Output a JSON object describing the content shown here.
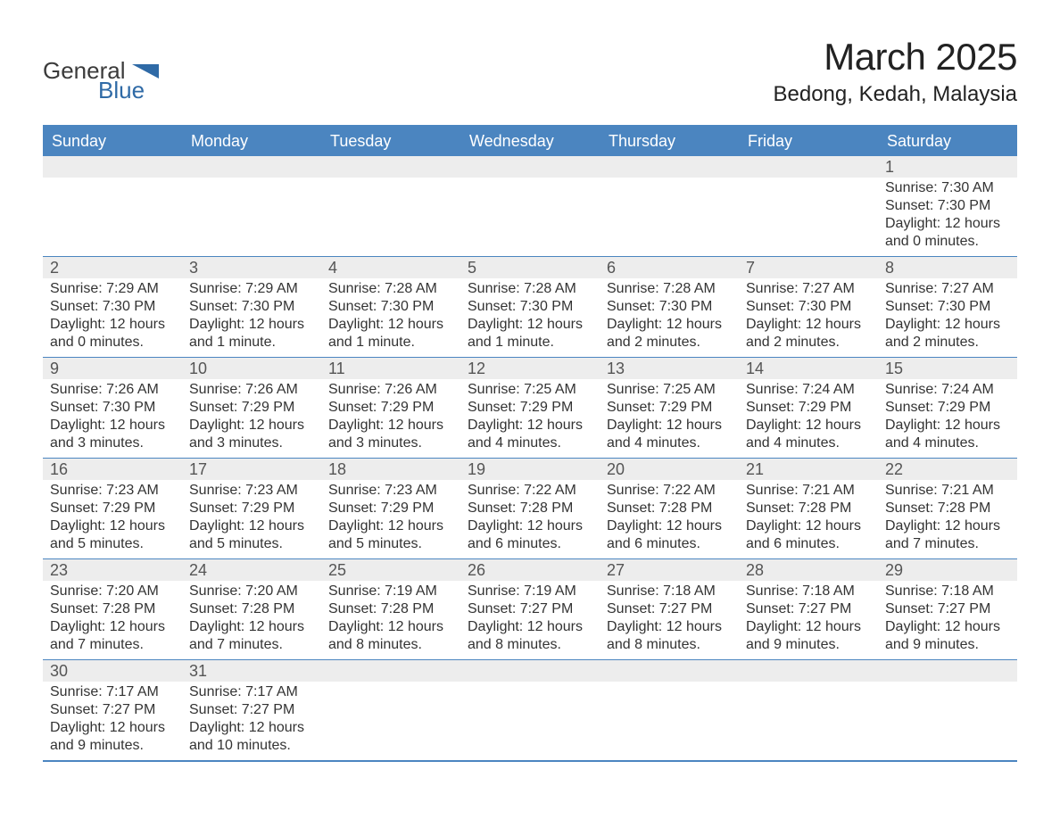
{
  "brand": {
    "name": "GeneralBlue",
    "text_primary": "General",
    "text_secondary": "Blue",
    "color_dark": "#3b3b3b",
    "color_accent": "#2f6aa6"
  },
  "title": {
    "month_year": "March 2025",
    "location": "Bedong, Kedah, Malaysia",
    "title_fontsize_pt": 32,
    "location_fontsize_pt": 18,
    "text_color": "#222222"
  },
  "colors": {
    "header_bg": "#4b85c0",
    "header_text": "#ffffff",
    "daynum_bg": "#ededed",
    "daynum_text": "#555555",
    "body_text": "#333333",
    "row_divider": "#4b85c0",
    "page_bg": "#ffffff"
  },
  "weekdays": [
    "Sunday",
    "Monday",
    "Tuesday",
    "Wednesday",
    "Thursday",
    "Friday",
    "Saturday"
  ],
  "layout": {
    "columns": 7,
    "rows": 6,
    "cell_fontsize_pt": 12,
    "weekday_fontsize_pt": 14
  },
  "weeks": [
    [
      null,
      null,
      null,
      null,
      null,
      null,
      {
        "n": "1",
        "sunrise": "Sunrise: 7:30 AM",
        "sunset": "Sunset: 7:30 PM",
        "dl1": "Daylight: 12 hours",
        "dl2": "and 0 minutes."
      }
    ],
    [
      {
        "n": "2",
        "sunrise": "Sunrise: 7:29 AM",
        "sunset": "Sunset: 7:30 PM",
        "dl1": "Daylight: 12 hours",
        "dl2": "and 0 minutes."
      },
      {
        "n": "3",
        "sunrise": "Sunrise: 7:29 AM",
        "sunset": "Sunset: 7:30 PM",
        "dl1": "Daylight: 12 hours",
        "dl2": "and 1 minute."
      },
      {
        "n": "4",
        "sunrise": "Sunrise: 7:28 AM",
        "sunset": "Sunset: 7:30 PM",
        "dl1": "Daylight: 12 hours",
        "dl2": "and 1 minute."
      },
      {
        "n": "5",
        "sunrise": "Sunrise: 7:28 AM",
        "sunset": "Sunset: 7:30 PM",
        "dl1": "Daylight: 12 hours",
        "dl2": "and 1 minute."
      },
      {
        "n": "6",
        "sunrise": "Sunrise: 7:28 AM",
        "sunset": "Sunset: 7:30 PM",
        "dl1": "Daylight: 12 hours",
        "dl2": "and 2 minutes."
      },
      {
        "n": "7",
        "sunrise": "Sunrise: 7:27 AM",
        "sunset": "Sunset: 7:30 PM",
        "dl1": "Daylight: 12 hours",
        "dl2": "and 2 minutes."
      },
      {
        "n": "8",
        "sunrise": "Sunrise: 7:27 AM",
        "sunset": "Sunset: 7:30 PM",
        "dl1": "Daylight: 12 hours",
        "dl2": "and 2 minutes."
      }
    ],
    [
      {
        "n": "9",
        "sunrise": "Sunrise: 7:26 AM",
        "sunset": "Sunset: 7:30 PM",
        "dl1": "Daylight: 12 hours",
        "dl2": "and 3 minutes."
      },
      {
        "n": "10",
        "sunrise": "Sunrise: 7:26 AM",
        "sunset": "Sunset: 7:29 PM",
        "dl1": "Daylight: 12 hours",
        "dl2": "and 3 minutes."
      },
      {
        "n": "11",
        "sunrise": "Sunrise: 7:26 AM",
        "sunset": "Sunset: 7:29 PM",
        "dl1": "Daylight: 12 hours",
        "dl2": "and 3 minutes."
      },
      {
        "n": "12",
        "sunrise": "Sunrise: 7:25 AM",
        "sunset": "Sunset: 7:29 PM",
        "dl1": "Daylight: 12 hours",
        "dl2": "and 4 minutes."
      },
      {
        "n": "13",
        "sunrise": "Sunrise: 7:25 AM",
        "sunset": "Sunset: 7:29 PM",
        "dl1": "Daylight: 12 hours",
        "dl2": "and 4 minutes."
      },
      {
        "n": "14",
        "sunrise": "Sunrise: 7:24 AM",
        "sunset": "Sunset: 7:29 PM",
        "dl1": "Daylight: 12 hours",
        "dl2": "and 4 minutes."
      },
      {
        "n": "15",
        "sunrise": "Sunrise: 7:24 AM",
        "sunset": "Sunset: 7:29 PM",
        "dl1": "Daylight: 12 hours",
        "dl2": "and 4 minutes."
      }
    ],
    [
      {
        "n": "16",
        "sunrise": "Sunrise: 7:23 AM",
        "sunset": "Sunset: 7:29 PM",
        "dl1": "Daylight: 12 hours",
        "dl2": "and 5 minutes."
      },
      {
        "n": "17",
        "sunrise": "Sunrise: 7:23 AM",
        "sunset": "Sunset: 7:29 PM",
        "dl1": "Daylight: 12 hours",
        "dl2": "and 5 minutes."
      },
      {
        "n": "18",
        "sunrise": "Sunrise: 7:23 AM",
        "sunset": "Sunset: 7:29 PM",
        "dl1": "Daylight: 12 hours",
        "dl2": "and 5 minutes."
      },
      {
        "n": "19",
        "sunrise": "Sunrise: 7:22 AM",
        "sunset": "Sunset: 7:28 PM",
        "dl1": "Daylight: 12 hours",
        "dl2": "and 6 minutes."
      },
      {
        "n": "20",
        "sunrise": "Sunrise: 7:22 AM",
        "sunset": "Sunset: 7:28 PM",
        "dl1": "Daylight: 12 hours",
        "dl2": "and 6 minutes."
      },
      {
        "n": "21",
        "sunrise": "Sunrise: 7:21 AM",
        "sunset": "Sunset: 7:28 PM",
        "dl1": "Daylight: 12 hours",
        "dl2": "and 6 minutes."
      },
      {
        "n": "22",
        "sunrise": "Sunrise: 7:21 AM",
        "sunset": "Sunset: 7:28 PM",
        "dl1": "Daylight: 12 hours",
        "dl2": "and 7 minutes."
      }
    ],
    [
      {
        "n": "23",
        "sunrise": "Sunrise: 7:20 AM",
        "sunset": "Sunset: 7:28 PM",
        "dl1": "Daylight: 12 hours",
        "dl2": "and 7 minutes."
      },
      {
        "n": "24",
        "sunrise": "Sunrise: 7:20 AM",
        "sunset": "Sunset: 7:28 PM",
        "dl1": "Daylight: 12 hours",
        "dl2": "and 7 minutes."
      },
      {
        "n": "25",
        "sunrise": "Sunrise: 7:19 AM",
        "sunset": "Sunset: 7:28 PM",
        "dl1": "Daylight: 12 hours",
        "dl2": "and 8 minutes."
      },
      {
        "n": "26",
        "sunrise": "Sunrise: 7:19 AM",
        "sunset": "Sunset: 7:27 PM",
        "dl1": "Daylight: 12 hours",
        "dl2": "and 8 minutes."
      },
      {
        "n": "27",
        "sunrise": "Sunrise: 7:18 AM",
        "sunset": "Sunset: 7:27 PM",
        "dl1": "Daylight: 12 hours",
        "dl2": "and 8 minutes."
      },
      {
        "n": "28",
        "sunrise": "Sunrise: 7:18 AM",
        "sunset": "Sunset: 7:27 PM",
        "dl1": "Daylight: 12 hours",
        "dl2": "and 9 minutes."
      },
      {
        "n": "29",
        "sunrise": "Sunrise: 7:18 AM",
        "sunset": "Sunset: 7:27 PM",
        "dl1": "Daylight: 12 hours",
        "dl2": "and 9 minutes."
      }
    ],
    [
      {
        "n": "30",
        "sunrise": "Sunrise: 7:17 AM",
        "sunset": "Sunset: 7:27 PM",
        "dl1": "Daylight: 12 hours",
        "dl2": "and 9 minutes."
      },
      {
        "n": "31",
        "sunrise": "Sunrise: 7:17 AM",
        "sunset": "Sunset: 7:27 PM",
        "dl1": "Daylight: 12 hours",
        "dl2": "and 10 minutes."
      },
      null,
      null,
      null,
      null,
      null
    ]
  ]
}
